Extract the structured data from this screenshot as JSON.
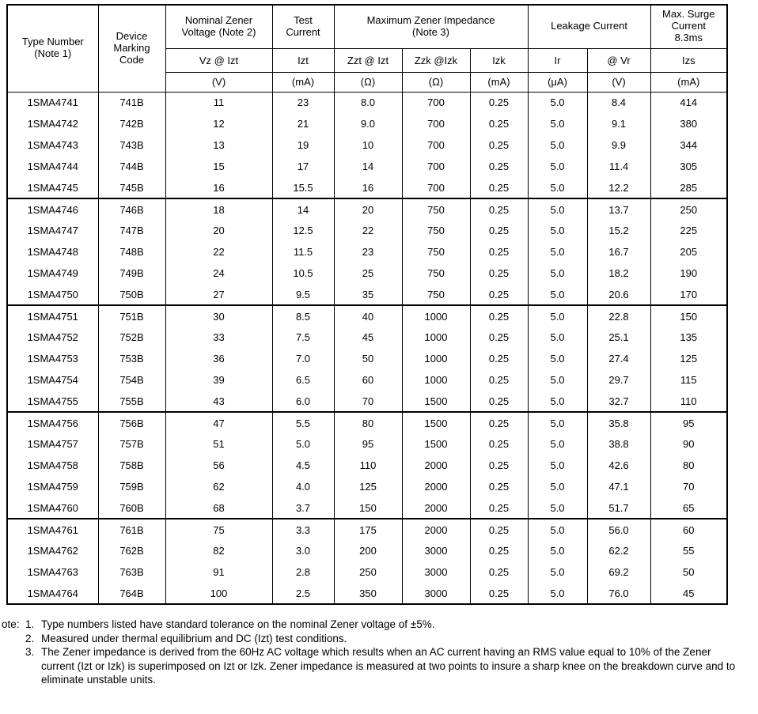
{
  "table": {
    "group_headers": {
      "type_number": "Type Number\n(Note 1)",
      "device_marking": "Device\nMarking\nCode",
      "nominal_zener": "Nominal Zener\nVoltage (Note 2)",
      "test_current": "Test\nCurrent",
      "max_impedance": "Maximum Zener Impedance\n(Note 3)",
      "leakage": "Leakage Current",
      "max_surge": "Max. Surge\nCurrent\n8.3ms"
    },
    "sub_headers": [
      "Vz @ Izt",
      "Izt",
      "Zzt @ Izt",
      "Zzk @Izk",
      "Izk",
      "Ir",
      "@ Vr",
      "Izs"
    ],
    "units": [
      "(V)",
      "(mA)",
      "(Ω)",
      "(Ω)",
      "(mA)",
      "(μA)",
      "(V)",
      "(mA)"
    ],
    "group_size": 5,
    "rows": [
      [
        "1SMA4741",
        "741B",
        "11",
        "23",
        "8.0",
        "700",
        "0.25",
        "5.0",
        "8.4",
        "414"
      ],
      [
        "1SMA4742",
        "742B",
        "12",
        "21",
        "9.0",
        "700",
        "0.25",
        "5.0",
        "9.1",
        "380"
      ],
      [
        "1SMA4743",
        "743B",
        "13",
        "19",
        "10",
        "700",
        "0.25",
        "5.0",
        "9.9",
        "344"
      ],
      [
        "1SMA4744",
        "744B",
        "15",
        "17",
        "14",
        "700",
        "0.25",
        "5.0",
        "11.4",
        "305"
      ],
      [
        "1SMA4745",
        "745B",
        "16",
        "15.5",
        "16",
        "700",
        "0.25",
        "5.0",
        "12.2",
        "285"
      ],
      [
        "1SMA4746",
        "746B",
        "18",
        "14",
        "20",
        "750",
        "0.25",
        "5.0",
        "13.7",
        "250"
      ],
      [
        "1SMA4747",
        "747B",
        "20",
        "12.5",
        "22",
        "750",
        "0.25",
        "5.0",
        "15.2",
        "225"
      ],
      [
        "1SMA4748",
        "748B",
        "22",
        "11.5",
        "23",
        "750",
        "0.25",
        "5.0",
        "16.7",
        "205"
      ],
      [
        "1SMA4749",
        "749B",
        "24",
        "10.5",
        "25",
        "750",
        "0.25",
        "5.0",
        "18.2",
        "190"
      ],
      [
        "1SMA4750",
        "750B",
        "27",
        "9.5",
        "35",
        "750",
        "0.25",
        "5.0",
        "20.6",
        "170"
      ],
      [
        "1SMA4751",
        "751B",
        "30",
        "8.5",
        "40",
        "1000",
        "0.25",
        "5.0",
        "22.8",
        "150"
      ],
      [
        "1SMA4752",
        "752B",
        "33",
        "7.5",
        "45",
        "1000",
        "0.25",
        "5.0",
        "25.1",
        "135"
      ],
      [
        "1SMA4753",
        "753B",
        "36",
        "7.0",
        "50",
        "1000",
        "0.25",
        "5.0",
        "27.4",
        "125"
      ],
      [
        "1SMA4754",
        "754B",
        "39",
        "6.5",
        "60",
        "1000",
        "0.25",
        "5.0",
        "29.7",
        "115"
      ],
      [
        "1SMA4755",
        "755B",
        "43",
        "6.0",
        "70",
        "1500",
        "0.25",
        "5.0",
        "32.7",
        "110"
      ],
      [
        "1SMA4756",
        "756B",
        "47",
        "5.5",
        "80",
        "1500",
        "0.25",
        "5.0",
        "35.8",
        "95"
      ],
      [
        "1SMA4757",
        "757B",
        "51",
        "5.0",
        "95",
        "1500",
        "0.25",
        "5.0",
        "38.8",
        "90"
      ],
      [
        "1SMA4758",
        "758B",
        "56",
        "4.5",
        "110",
        "2000",
        "0.25",
        "5.0",
        "42.6",
        "80"
      ],
      [
        "1SMA4759",
        "759B",
        "62",
        "4.0",
        "125",
        "2000",
        "0.25",
        "5.0",
        "47.1",
        "70"
      ],
      [
        "1SMA4760",
        "760B",
        "68",
        "3.7",
        "150",
        "2000",
        "0.25",
        "5.0",
        "51.7",
        "65"
      ],
      [
        "1SMA4761",
        "761B",
        "75",
        "3.3",
        "175",
        "2000",
        "0.25",
        "5.0",
        "56.0",
        "60"
      ],
      [
        "1SMA4762",
        "762B",
        "82",
        "3.0",
        "200",
        "3000",
        "0.25",
        "5.0",
        "62.2",
        "55"
      ],
      [
        "1SMA4763",
        "763B",
        "91",
        "2.8",
        "250",
        "3000",
        "0.25",
        "5.0",
        "69.2",
        "50"
      ],
      [
        "1SMA4764",
        "764B",
        "100",
        "2.5",
        "350",
        "3000",
        "0.25",
        "5.0",
        "76.0",
        "45"
      ]
    ]
  },
  "notes": {
    "label": "ote:",
    "items": [
      {
        "num": "1.",
        "text": "Type numbers listed have standard tolerance on the nominal Zener voltage of ±5%."
      },
      {
        "num": "2.",
        "text": "Measured under thermal equilibrium and DC (Izt) test conditions."
      },
      {
        "num": "3.",
        "text": "The Zener impedance is derived from the 60Hz AC voltage which results when an AC current having an RMS value equal to 10% of the Zener current (Izt or Izk) is superimposed on Izt or Izk. Zener impedance is measured at two points to insure a sharp knee on the breakdown curve and to eliminate unstable units."
      }
    ]
  }
}
